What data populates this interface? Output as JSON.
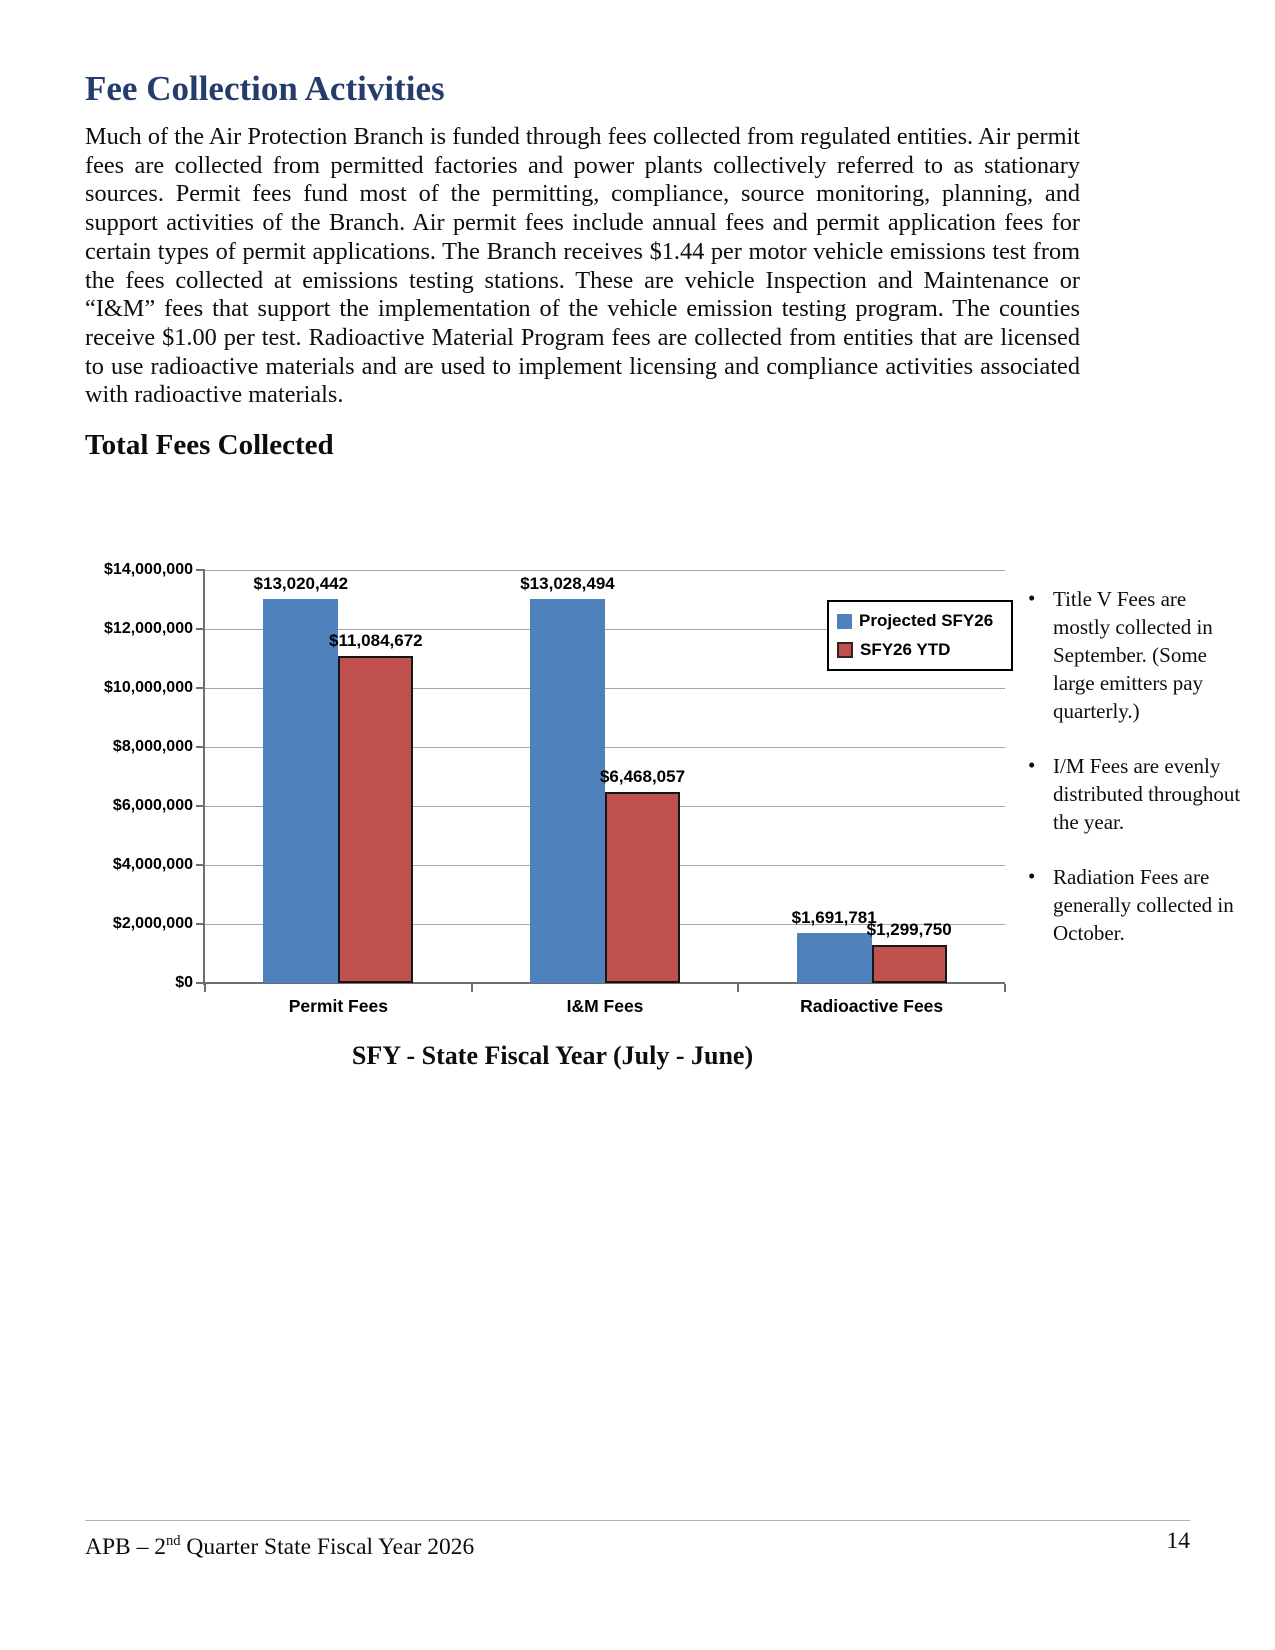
{
  "doc": {
    "title": "Fee Collection Activities",
    "intro": "Much of the Air Protection Branch is funded through fees collected from regulated entities. Air permit fees are collected from permitted factories and power plants collectively referred to as stationary sources. Permit fees fund most of the permitting, compliance, source monitoring, planning, and support activities of the Branch. Air permit fees include annual fees and permit application fees for certain types of permit applications. The Branch receives $1.44 per motor vehicle emissions test from the fees collected at emissions testing stations. These are vehicle Inspection and Maintenance or “I&M” fees that support the implementation of the vehicle emission testing program.  The counties receive $1.00 per test. Radioactive Material Program fees are collected from entities that are licensed to use radioactive materials and are used to implement licensing and compliance activities associated with radioactive materials.",
    "section_heading": "Total Fees Collected",
    "chart_caption": "SFY - State Fiscal Year (July - June)",
    "footer": {
      "left_prefix": "APB – 2",
      "left_superscript": "nd",
      "left_suffix": " Quarter State Fiscal Year 2026",
      "page_number": "14"
    }
  },
  "notes": [
    "Title V Fees are mostly collected in September. (Some large emitters pay quarterly.)",
    "I/M Fees are evenly distributed throughout the year.",
    "Radiation Fees are generally collected in October."
  ],
  "chart_data": {
    "type": "bar",
    "title": "Total Fees Collected",
    "categories": [
      "Permit Fees",
      "I&M Fees",
      "Radioactive Fees"
    ],
    "series": [
      {
        "name": "Projected SFY26",
        "color": "#4F81BD",
        "outlined": false,
        "values": [
          13020442,
          13028494,
          1691781
        ],
        "labels": [
          "$13,020,442",
          "$13,028,494",
          "$1,691,781"
        ]
      },
      {
        "name": "SFY26 YTD",
        "color": "#C0504D",
        "outlined": true,
        "values": [
          11084672,
          6468057,
          1299750
        ],
        "labels": [
          "$11,084,672",
          "$6,468,057",
          "$1,299,750"
        ]
      }
    ],
    "xlabel": "",
    "ylabel": "",
    "ylim": [
      0,
      14000000
    ],
    "ytick_step": 2000000,
    "yticks": [
      "$0",
      "$2,000,000",
      "$4,000,000",
      "$6,000,000",
      "$8,000,000",
      "$10,000,000",
      "$12,000,000",
      "$14,000,000"
    ],
    "grid": true,
    "legend_position": "inside-top-right"
  }
}
